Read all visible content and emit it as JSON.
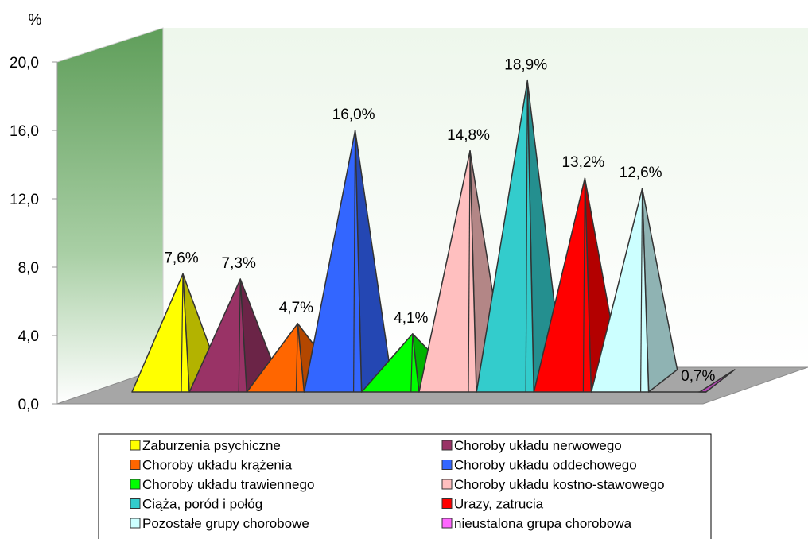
{
  "chart_data": {
    "type": "bar",
    "ylabel": "%",
    "ylim": [
      0,
      20
    ],
    "yticks": [
      "0,0",
      "4,0",
      "8,0",
      "12,0",
      "16,0",
      "20,0"
    ],
    "series": [
      {
        "name": "Zaburzenia psychiczne",
        "value": 7.6,
        "label": "7,6%",
        "color": "#ffff00"
      },
      {
        "name": "Choroby układu nerwowego",
        "value": 7.3,
        "label": "7,3%",
        "color": "#993366"
      },
      {
        "name": "Choroby układu krążenia",
        "value": 4.7,
        "label": "4,7%",
        "color": "#ff6600"
      },
      {
        "name": "Choroby układu oddechowego",
        "value": 16.0,
        "label": "16,0%",
        "color": "#3366ff"
      },
      {
        "name": "Choroby układu trawiennego",
        "value": 4.1,
        "label": "4,1%",
        "color": "#00ff00"
      },
      {
        "name": "Choroby układu kostno-stawowego",
        "value": 14.8,
        "label": "14,8%",
        "color": "#ffbfbf"
      },
      {
        "name": "Ciąża, poród i połóg",
        "value": 18.9,
        "label": "18,9%",
        "color": "#33cccc"
      },
      {
        "name": "Urazy, zatrucia",
        "value": 13.2,
        "label": "13,2%",
        "color": "#ff0000"
      },
      {
        "name": "Pozostałe grupy chorobowe",
        "value": 12.6,
        "label": "12,6%",
        "color": "#ccffff"
      },
      {
        "name": "nieustalona grupa chorobowa",
        "value": 0.7,
        "label": "0,7%",
        "color": "#ff66ff"
      }
    ],
    "grid": false,
    "legend_position": "bottom",
    "legend_columns": 2
  }
}
